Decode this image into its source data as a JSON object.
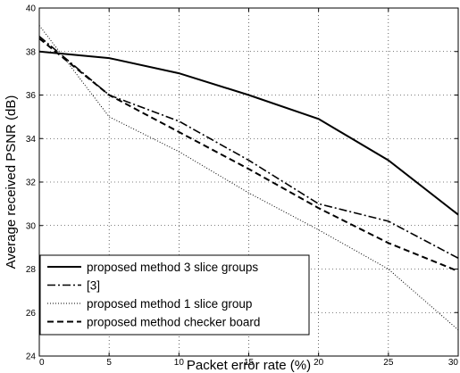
{
  "chart_data": {
    "type": "line",
    "title": "",
    "xlabel": "Packet error rate (%)",
    "ylabel": "Average received PSNR (dB)",
    "xlim": [
      0,
      30
    ],
    "ylim": [
      24,
      40
    ],
    "xticks": [
      0,
      5,
      10,
      15,
      20,
      25,
      30
    ],
    "yticks": [
      24,
      26,
      28,
      30,
      32,
      34,
      36,
      38,
      40
    ],
    "grid": true,
    "legend_position": "bottom-left",
    "x": [
      0,
      5,
      10,
      15,
      20,
      25,
      30
    ],
    "series": [
      {
        "name": "proposed method 3 slice groups",
        "style": "solid",
        "values": [
          38.0,
          37.7,
          37.0,
          36.0,
          34.9,
          33.0,
          30.5
        ]
      },
      {
        "name": "[3]",
        "style": "dashdot",
        "values": [
          38.7,
          36.0,
          34.8,
          33.0,
          31.0,
          30.2,
          28.5
        ]
      },
      {
        "name": "proposed method 1 slice group",
        "style": "dotted",
        "values": [
          39.2,
          35.0,
          33.4,
          31.5,
          29.8,
          28.0,
          25.2
        ]
      },
      {
        "name": "proposed method checker board",
        "style": "dashed",
        "values": [
          38.6,
          36.0,
          34.3,
          32.6,
          30.8,
          29.2,
          27.9
        ]
      }
    ]
  }
}
